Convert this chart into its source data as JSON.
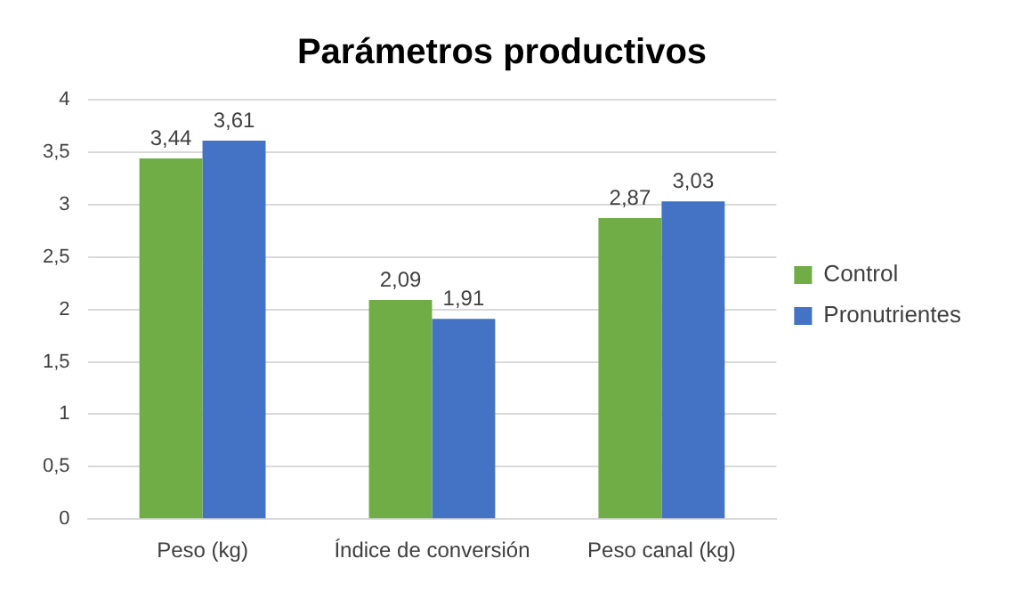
{
  "chart_data": {
    "type": "bar",
    "title": "Parámetros productivos",
    "categories": [
      "Peso (kg)",
      "Índice de conversión",
      "Peso canal (kg)"
    ],
    "series": [
      {
        "name": "Control",
        "color": "#70ad47",
        "values": [
          3.44,
          2.09,
          2.87
        ],
        "value_labels": [
          "3,44",
          "2,09",
          "2,87"
        ]
      },
      {
        "name": "Pronutrientes",
        "color": "#4472c4",
        "values": [
          3.61,
          1.91,
          3.03
        ],
        "value_labels": [
          "3,61",
          "1,91",
          "3,03"
        ]
      }
    ],
    "ylim": [
      0,
      4
    ],
    "yticks": [
      0,
      {
        "value": 0.5,
        "label": "0,5"
      },
      1,
      {
        "value": 1.5,
        "label": "1,5"
      },
      2,
      {
        "value": 2.5,
        "label": "2,5"
      },
      3,
      {
        "value": 3.5,
        "label": "3,5"
      },
      4
    ],
    "grid": "y",
    "legend": "right"
  }
}
